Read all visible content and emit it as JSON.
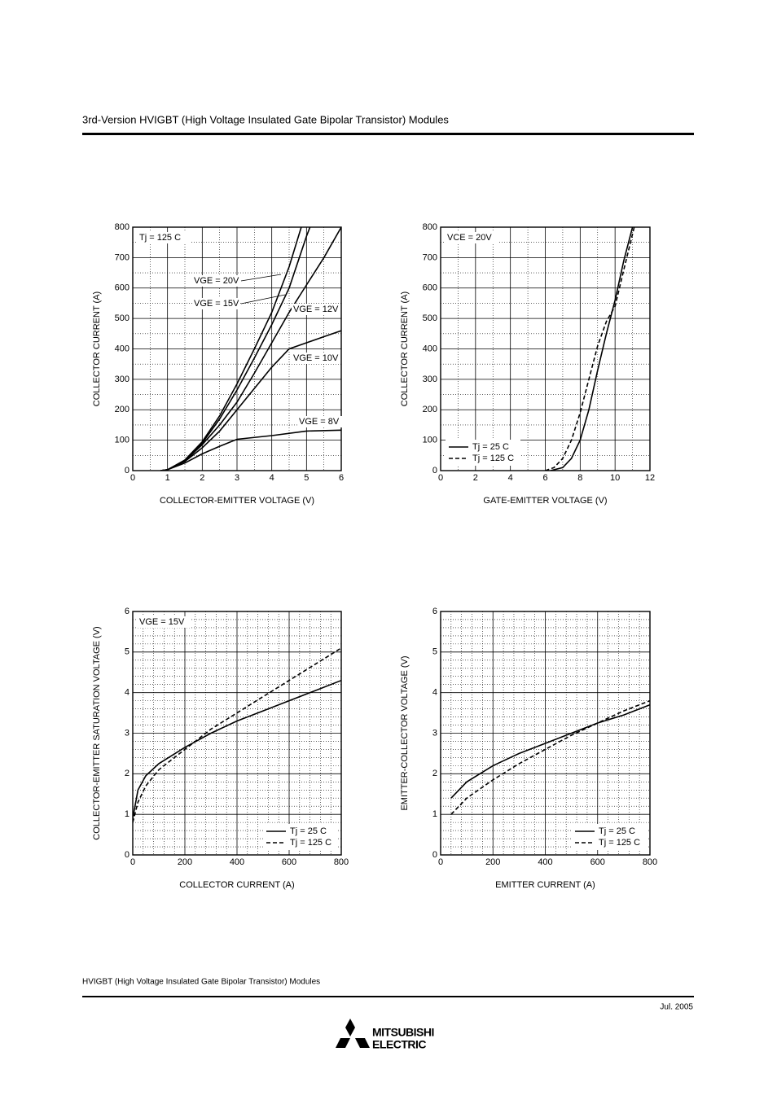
{
  "header": {
    "title": "3rd-Version HVIGBT (High Voltage Insulated Gate Bipolar Transistor) Modules"
  },
  "footer": {
    "text": "HVIGBT (High Voltage Insulated Gate Bipolar Transistor) Modules",
    "date": "Jul. 2005",
    "brand": [
      "MITSUBISHI",
      "ELECTRIC"
    ]
  },
  "chart_data": [
    {
      "type": "line",
      "annotation": "Tj = 125 C",
      "xlabel": "COLLECTOR-EMITTER VOLTAGE (V)",
      "ylabel": "COLLECTOR CURRENT (A)",
      "xlim": [
        0,
        6
      ],
      "xticks": [
        0,
        1,
        2,
        3,
        4,
        5,
        6
      ],
      "ylim": [
        0,
        800
      ],
      "yticks": [
        0,
        100,
        200,
        300,
        400,
        500,
        600,
        700,
        800
      ],
      "grid": true,
      "minor_grid": 2,
      "legend": "none",
      "series": [
        {
          "name": "VGE = 20V",
          "color": "#000",
          "dash": false,
          "x": [
            0.8,
            1,
            1.5,
            2,
            2.5,
            3,
            3.5,
            4,
            4.5,
            4.85
          ],
          "values": [
            0,
            3,
            35,
            95,
            180,
            285,
            400,
            520,
            670,
            800
          ]
        },
        {
          "name": "VGE = 15V",
          "color": "#000",
          "dash": false,
          "x": [
            0.8,
            1,
            1.5,
            2,
            2.5,
            3,
            3.5,
            4,
            4.5,
            5,
            5.1
          ],
          "values": [
            0,
            3,
            33,
            90,
            170,
            265,
            370,
            480,
            600,
            770,
            800
          ]
        },
        {
          "name": "VGE = 12V",
          "color": "#000",
          "dash": false,
          "x": [
            0.8,
            1,
            1.5,
            2,
            2.5,
            3,
            3.5,
            4,
            4.5,
            5,
            5.5,
            6
          ],
          "values": [
            0,
            3,
            32,
            85,
            150,
            225,
            320,
            420,
            520,
            610,
            700,
            800
          ]
        },
        {
          "name": "VGE = 10V",
          "color": "#000",
          "dash": false,
          "x": [
            0.8,
            1,
            1.5,
            2,
            2.5,
            3,
            3.5,
            4,
            4.5,
            5,
            5.5,
            6
          ],
          "values": [
            0,
            3,
            30,
            75,
            130,
            200,
            270,
            340,
            400,
            420,
            440,
            460
          ]
        },
        {
          "name": "VGE = 8V",
          "color": "#000",
          "dash": false,
          "x": [
            0.8,
            1,
            1.5,
            2,
            2.5,
            3,
            4,
            5,
            6
          ],
          "values": [
            0,
            3,
            25,
            55,
            80,
            103,
            115,
            130,
            133
          ]
        }
      ]
    },
    {
      "type": "line",
      "annotation": "VCE = 20V",
      "xlabel": "GATE-EMITTER VOLTAGE (V)",
      "ylabel": "COLLECTOR CURRENT (A)",
      "xlim": [
        0,
        12
      ],
      "xticks": [
        0,
        2,
        4,
        6,
        8,
        10,
        12
      ],
      "ylim": [
        0,
        800
      ],
      "yticks": [
        0,
        100,
        200,
        300,
        400,
        500,
        600,
        700,
        800
      ],
      "grid": true,
      "minor_grid": 2,
      "legend": "lower left",
      "series": [
        {
          "name": "Tj = 25 C",
          "color": "#000",
          "dash": false,
          "x": [
            6.3,
            7,
            7.5,
            8,
            8.5,
            9,
            9.5,
            10,
            10.5,
            11
          ],
          "values": [
            0,
            10,
            40,
            100,
            200,
            330,
            450,
            560,
            690,
            800
          ]
        },
        {
          "name": "Tj = 125 C",
          "color": "#000",
          "dash": true,
          "x": [
            6,
            6.5,
            7,
            7.5,
            8,
            8.5,
            9,
            9.5,
            10,
            10.5,
            11.1
          ],
          "values": [
            0,
            10,
            40,
            100,
            190,
            300,
            410,
            490,
            540,
            660,
            800
          ]
        }
      ]
    },
    {
      "type": "line",
      "annotation": "VGE = 15V",
      "xlabel": "COLLECTOR CURRENT (A)",
      "ylabel": "COLLECTOR-EMITTER SATURATION VOLTAGE (V)",
      "xlim": [
        0,
        800
      ],
      "xticks": [
        0,
        200,
        400,
        600,
        800
      ],
      "ylim": [
        0,
        6
      ],
      "yticks": [
        0,
        1,
        2,
        3,
        4,
        5,
        6
      ],
      "grid": true,
      "minor_grid": 5,
      "legend": "lower right",
      "series": [
        {
          "name": "Tj = 25 C",
          "color": "#000",
          "dash": false,
          "x": [
            0,
            20,
            50,
            100,
            200,
            300,
            400,
            500,
            600,
            700,
            800
          ],
          "values": [
            0.9,
            1.6,
            1.95,
            2.25,
            2.65,
            3.0,
            3.3,
            3.55,
            3.8,
            4.05,
            4.3
          ]
        },
        {
          "name": "Tj = 125 C",
          "color": "#000",
          "dash": true,
          "x": [
            0,
            20,
            50,
            100,
            200,
            300,
            400,
            500,
            600,
            700,
            800
          ],
          "values": [
            0.8,
            1.3,
            1.7,
            2.1,
            2.6,
            3.1,
            3.5,
            3.9,
            4.3,
            4.7,
            5.1
          ]
        }
      ]
    },
    {
      "type": "line",
      "xlabel": "EMITTER CURRENT (A)",
      "ylabel": "EMITTER-COLLECTOR VOLTAGE (V)",
      "xlim": [
        0,
        800
      ],
      "xticks": [
        0,
        200,
        400,
        600,
        800
      ],
      "ylim": [
        0,
        6
      ],
      "yticks": [
        0,
        1,
        2,
        3,
        4,
        5,
        6
      ],
      "grid": true,
      "minor_grid": 5,
      "legend": "lower right",
      "series": [
        {
          "name": "Tj = 25 C",
          "color": "#000",
          "dash": false,
          "x": [
            40,
            100,
            200,
            300,
            400,
            500,
            600,
            700,
            800
          ],
          "values": [
            1.4,
            1.8,
            2.2,
            2.5,
            2.75,
            3.0,
            3.25,
            3.45,
            3.7
          ]
        },
        {
          "name": "Tj = 125 C",
          "color": "#000",
          "dash": true,
          "x": [
            40,
            100,
            200,
            300,
            400,
            500,
            600,
            700,
            800
          ],
          "values": [
            1.0,
            1.4,
            1.85,
            2.25,
            2.6,
            2.95,
            3.25,
            3.55,
            3.8
          ]
        }
      ]
    }
  ]
}
